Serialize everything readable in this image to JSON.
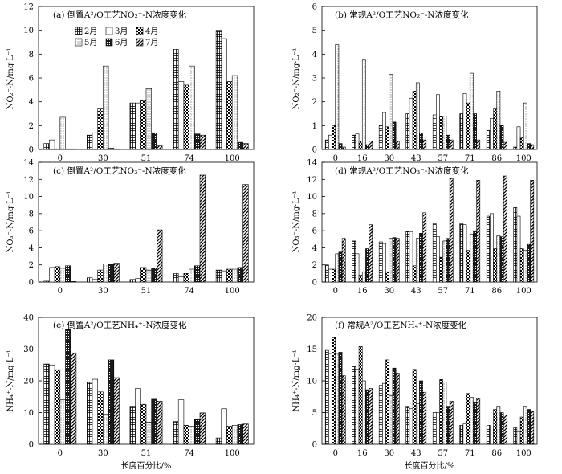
{
  "figure": {
    "x_axis_label": "长度百分比/%"
  },
  "series_styles": [
    {
      "name": "2月",
      "pattern": "grid"
    },
    {
      "name": "3月",
      "pattern": "hollow"
    },
    {
      "name": "4月",
      "pattern": "check"
    },
    {
      "name": "5月",
      "pattern": "dots"
    },
    {
      "name": "6月",
      "pattern": "dark"
    },
    {
      "name": "7月",
      "pattern": "diag"
    }
  ],
  "chart_data": [
    {
      "type": "bar",
      "title": "(a) 倒置A²/O工艺NO₂⁻-N浓度变化",
      "xlabel": "",
      "ylabel": "NO₂⁻-N/mg·L⁻¹",
      "ylim": [
        0,
        12
      ],
      "yticks": [
        0,
        2,
        4,
        6,
        8,
        10,
        12
      ],
      "categories": [
        "0",
        "30",
        "51",
        "74",
        "100"
      ],
      "legend": true,
      "series": [
        {
          "name": "2月",
          "values": [
            0.5,
            1.2,
            3.9,
            8.4,
            10.0
          ]
        },
        {
          "name": "3月",
          "values": [
            0.8,
            1.4,
            3.9,
            5.7,
            9.3
          ]
        },
        {
          "name": "4月",
          "values": [
            0.05,
            3.4,
            4.1,
            5.4,
            5.7
          ]
        },
        {
          "name": "5月",
          "values": [
            2.7,
            7.0,
            5.1,
            7.0,
            6.2
          ]
        },
        {
          "name": "6月",
          "values": [
            0.05,
            0.1,
            1.4,
            1.3,
            0.6
          ]
        },
        {
          "name": "7月",
          "values": [
            0.05,
            0.05,
            0.3,
            1.2,
            0.5
          ]
        }
      ]
    },
    {
      "type": "bar",
      "title": "(b) 常规A²/O工艺NO₂⁻-N浓度变化",
      "xlabel": "",
      "ylabel": "NO₂⁻-N/mg·L⁻¹",
      "ylim": [
        0,
        6
      ],
      "yticks": [
        0,
        1,
        2,
        3,
        4,
        5,
        6
      ],
      "categories": [
        "0",
        "16",
        "30",
        "43",
        "57",
        "71",
        "86",
        "100"
      ],
      "legend": false,
      "series": [
        {
          "name": "2月",
          "values": [
            0.4,
            0.6,
            1.0,
            1.5,
            1.45,
            1.5,
            0.8,
            0.1
          ]
        },
        {
          "name": "3月",
          "values": [
            0.6,
            0.65,
            1.55,
            2.15,
            2.3,
            2.35,
            1.3,
            0.95
          ]
        },
        {
          "name": "4月",
          "values": [
            1.0,
            0.35,
            0.95,
            2.45,
            1.4,
            1.95,
            1.7,
            0.5
          ]
        },
        {
          "name": "5月",
          "values": [
            4.4,
            3.75,
            3.15,
            2.8,
            1.4,
            3.2,
            2.45,
            1.95
          ]
        },
        {
          "name": "6月",
          "values": [
            0.25,
            0.2,
            1.15,
            0.7,
            0.6,
            1.5,
            1.0,
            0.25
          ]
        },
        {
          "name": "7月",
          "values": [
            0.1,
            0.35,
            0.35,
            0.4,
            0.4,
            0.4,
            0.3,
            0.2
          ]
        }
      ]
    },
    {
      "type": "bar",
      "title": "(c) 倒置A²/O工艺NO₃⁻-N浓度变化",
      "xlabel": "",
      "ylabel": "NO₃⁻-N/mg·L⁻¹",
      "ylim": [
        0,
        14
      ],
      "yticks": [
        0,
        2,
        4,
        6,
        8,
        10,
        12,
        14
      ],
      "categories": [
        "0",
        "30",
        "51",
        "74",
        "100"
      ],
      "legend": false,
      "series": [
        {
          "name": "2月",
          "values": [
            0.1,
            0.5,
            0.3,
            1.0,
            1.4
          ]
        },
        {
          "name": "3月",
          "values": [
            1.7,
            0.3,
            0.4,
            0.6,
            1.3
          ]
        },
        {
          "name": "4月",
          "values": [
            1.8,
            1.4,
            1.7,
            1.0,
            1.5
          ]
        },
        {
          "name": "5月",
          "values": [
            1.6,
            2.1,
            1.4,
            1.5,
            1.5
          ]
        },
        {
          "name": "6月",
          "values": [
            1.9,
            2.1,
            1.6,
            1.9,
            1.7
          ]
        },
        {
          "name": "7月",
          "values": [
            0.05,
            2.2,
            6.1,
            12.5,
            11.4
          ]
        }
      ]
    },
    {
      "type": "bar",
      "title": "(d) 常规A²/O工艺NO₃⁻-N浓度变化",
      "xlabel": "",
      "ylabel": "NO₃⁻-N/mg·L⁻¹",
      "ylim": [
        0,
        14
      ],
      "yticks": [
        0,
        2,
        4,
        6,
        8,
        10,
        12,
        14
      ],
      "categories": [
        "0",
        "16",
        "30",
        "43",
        "57",
        "71",
        "86",
        "100"
      ],
      "legend": false,
      "series": [
        {
          "name": "2月",
          "values": [
            2.0,
            4.8,
            4.7,
            5.9,
            6.8,
            6.8,
            7.7,
            8.7
          ]
        },
        {
          "name": "3月",
          "values": [
            1.5,
            3.3,
            4.5,
            5.9,
            5.3,
            6.7,
            8.0,
            7.7
          ]
        },
        {
          "name": "4月",
          "values": [
            1.5,
            0.8,
            1.2,
            1.9,
            2.9,
            3.7,
            3.9,
            3.9
          ]
        },
        {
          "name": "5月",
          "values": [
            3.3,
            1.2,
            5.1,
            5.1,
            4.8,
            5.6,
            5.4,
            3.7
          ]
        },
        {
          "name": "6月",
          "values": [
            3.5,
            3.9,
            5.2,
            5.7,
            5.1,
            6.0,
            5.3,
            4.4
          ]
        },
        {
          "name": "7月",
          "values": [
            5.1,
            6.7,
            5.1,
            8.1,
            12.1,
            11.9,
            12.4,
            11.9
          ]
        }
      ]
    },
    {
      "type": "bar",
      "title": "(e) 倒置A²/O工艺NH₄⁺-N浓度变化",
      "xlabel": "",
      "ylabel": "NH₄⁺-N/mg·L⁻¹",
      "ylim": [
        0,
        40
      ],
      "yticks": [
        0,
        10,
        20,
        30,
        40
      ],
      "categories": [
        "0",
        "30",
        "51",
        "74",
        "100"
      ],
      "legend": false,
      "series": [
        {
          "name": "2月",
          "values": [
            25.3,
            19.5,
            12.0,
            7.2,
            2.0
          ]
        },
        {
          "name": "3月",
          "values": [
            25.0,
            20.5,
            17.6,
            14.0,
            11.2
          ]
        },
        {
          "name": "4月",
          "values": [
            23.5,
            16.5,
            12.6,
            6.0,
            5.7
          ]
        },
        {
          "name": "5月",
          "values": [
            14.0,
            9.5,
            7.0,
            5.7,
            6.0
          ]
        },
        {
          "name": "6月",
          "values": [
            36.2,
            26.6,
            14.2,
            7.8,
            6.2
          ]
        },
        {
          "name": "7月",
          "values": [
            28.8,
            21.0,
            13.6,
            9.9,
            6.4
          ]
        }
      ]
    },
    {
      "type": "bar",
      "title": "(f) 常规A²/O工艺NH₄⁺-N浓度变化",
      "xlabel": "",
      "ylabel": "NH₄⁺-N/mg·L⁻¹",
      "ylim": [
        0,
        20
      ],
      "yticks": [
        0,
        5,
        10,
        15,
        20
      ],
      "categories": [
        "0",
        "16",
        "30",
        "43",
        "57",
        "71",
        "86",
        "100"
      ],
      "legend": false,
      "series": [
        {
          "name": "2月",
          "values": [
            14.8,
            12.3,
            9.3,
            6.0,
            5.0,
            3.0,
            3.0,
            2.6
          ]
        },
        {
          "name": "3月",
          "values": [
            14.3,
            11.8,
            9.6,
            5.6,
            5.0,
            3.2,
            2.7,
            2.0
          ]
        },
        {
          "name": "4月",
          "values": [
            16.8,
            15.4,
            13.3,
            11.8,
            10.2,
            8.0,
            5.5,
            4.3
          ]
        },
        {
          "name": "5月",
          "values": [
            14.3,
            10.0,
            7.7,
            6.4,
            9.8,
            7.4,
            6.0,
            6.0
          ]
        },
        {
          "name": "6月",
          "values": [
            14.5,
            8.6,
            12.0,
            10.0,
            6.0,
            6.6,
            5.0,
            5.5
          ]
        },
        {
          "name": "7月",
          "values": [
            10.8,
            8.8,
            11.2,
            8.2,
            6.8,
            7.3,
            4.6,
            5.2
          ]
        }
      ]
    }
  ]
}
